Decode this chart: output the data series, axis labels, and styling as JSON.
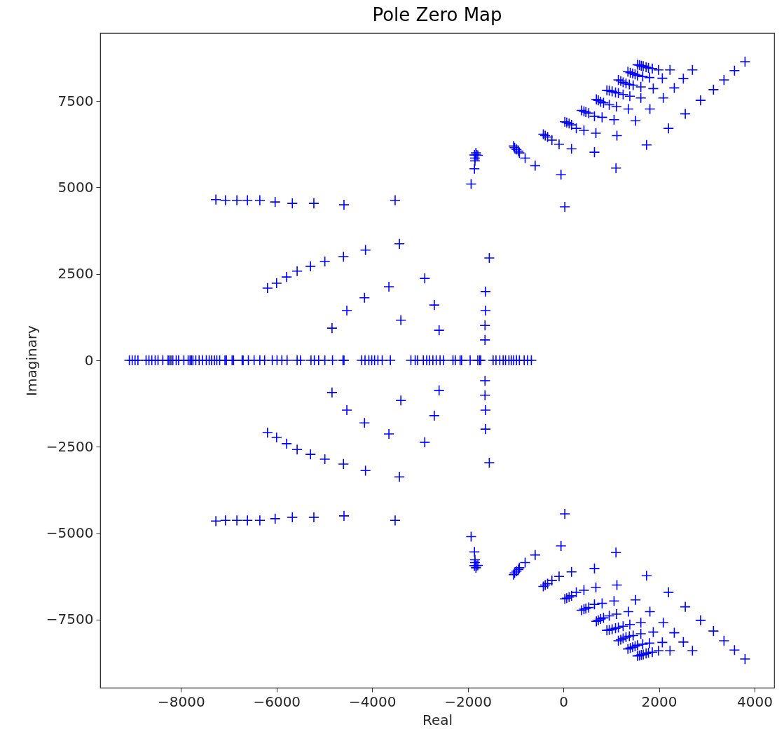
{
  "chart_data": {
    "type": "scatter",
    "title": "Pole Zero Map",
    "xlabel": "Real",
    "ylabel": "Imaginary",
    "xlim": [
      -9690,
      4410
    ],
    "ylim": [
      -9470,
      9470
    ],
    "xticks": [
      -8000,
      -6000,
      -4000,
      -2000,
      0,
      2000,
      4000
    ],
    "yticks": [
      -7500,
      -5000,
      -2500,
      0,
      2500,
      5000,
      7500
    ],
    "grid": false,
    "legend": false,
    "marker": "cross",
    "series": [
      {
        "color": "#0000ff",
        "x": [
          -7270,
          -7070,
          -6830,
          -6610,
          -6350,
          -6030,
          -5670,
          -5220,
          -4590,
          -3520,
          -6190,
          -6000,
          -5790,
          -5570,
          -5290,
          -4990,
          -4600,
          -4140,
          -3430,
          -4840,
          -4530,
          -4160,
          -3650,
          -2900,
          -2700,
          -2600,
          -3400,
          -1550,
          -1630,
          -1630,
          -1640,
          -1640,
          -1830,
          -1860,
          -1820,
          -1790,
          -1850,
          -1850,
          -1860,
          -1930,
          -1040,
          -1020,
          -980,
          -940,
          -920,
          -800,
          -590,
          -50,
          -420,
          -380,
          -330,
          -240,
          -90,
          170,
          650,
          1100,
          30,
          70,
          120,
          170,
          270,
          430,
          680,
          1120,
          380,
          430,
          470,
          530,
          650,
          810,
          1060,
          1510,
          690,
          730,
          780,
          840,
          960,
          1110,
          1360,
          1810,
          910,
          960,
          1020,
          1090,
          1150,
          1250,
          1390,
          1620,
          2090,
          1150,
          1200,
          1250,
          1310,
          1380,
          1460,
          1620,
          1880,
          2320,
          1350,
          1400,
          1450,
          1500,
          1550,
          1660,
          1800,
          2070,
          2510,
          1550,
          1590,
          1630,
          1670,
          1730,
          1780,
          1860,
          1990,
          2230,
          2700,
          1740,
          2200,
          2550,
          2870,
          3140,
          3360,
          3580,
          3800,
          30
        ],
        "values": [
          4650,
          4630,
          4630,
          4630,
          4630,
          4580,
          4540,
          4540,
          4500,
          4630,
          2090,
          2230,
          2410,
          2580,
          2720,
          2860,
          3000,
          3190,
          3370,
          930,
          1440,
          1810,
          2130,
          2370,
          1600,
          870,
          1160,
          2960,
          1990,
          1440,
          1010,
          590,
          6000,
          5940,
          5940,
          5930,
          5850,
          5770,
          5540,
          5100,
          6200,
          6150,
          6100,
          6050,
          6000,
          5850,
          5630,
          5370,
          6540,
          6500,
          6460,
          6370,
          6250,
          6120,
          6020,
          5560,
          6900,
          6880,
          6850,
          6810,
          6710,
          6650,
          6570,
          6500,
          7230,
          7200,
          7180,
          7150,
          7060,
          7030,
          6960,
          6930,
          7550,
          7520,
          7480,
          7450,
          7390,
          7340,
          7270,
          7270,
          7810,
          7800,
          7780,
          7750,
          7730,
          7690,
          7640,
          7590,
          7590,
          8110,
          8080,
          8040,
          8010,
          7980,
          7960,
          7910,
          7860,
          7880,
          8350,
          8320,
          8300,
          8270,
          8240,
          8210,
          8180,
          8160,
          8150,
          8550,
          8540,
          8520,
          8510,
          8480,
          8460,
          8440,
          8400,
          8400,
          8400,
          6230,
          6710,
          7130,
          7520,
          7830,
          8110,
          8380,
          8640,
          4440
        ]
      },
      {
        "color": "#0000ff",
        "x": [
          -7270,
          -7070,
          -6830,
          -6610,
          -6350,
          -6030,
          -5670,
          -5220,
          -4590,
          -3520,
          -6190,
          -6000,
          -5790,
          -5570,
          -5290,
          -4990,
          -4600,
          -4140,
          -3430,
          -4840,
          -4530,
          -4160,
          -3650,
          -2900,
          -2700,
          -2600,
          -3400,
          -1550,
          -1630,
          -1630,
          -1640,
          -1640,
          -1830,
          -1860,
          -1820,
          -1790,
          -1850,
          -1850,
          -1860,
          -1930,
          -1040,
          -1020,
          -980,
          -940,
          -920,
          -800,
          -590,
          -50,
          -420,
          -380,
          -330,
          -240,
          -90,
          170,
          650,
          1100,
          30,
          70,
          120,
          170,
          270,
          430,
          680,
          1120,
          380,
          430,
          470,
          530,
          650,
          810,
          1060,
          1510,
          690,
          730,
          780,
          840,
          960,
          1110,
          1360,
          1810,
          910,
          960,
          1020,
          1090,
          1150,
          1250,
          1390,
          1620,
          2090,
          1150,
          1200,
          1250,
          1310,
          1380,
          1460,
          1620,
          1880,
          2320,
          1350,
          1400,
          1450,
          1500,
          1550,
          1660,
          1800,
          2070,
          2510,
          1550,
          1590,
          1630,
          1670,
          1730,
          1780,
          1860,
          1990,
          2230,
          2700,
          1740,
          2200,
          2550,
          2870,
          3140,
          3360,
          3580,
          3800,
          30
        ],
        "values": [
          -4650,
          -4630,
          -4630,
          -4630,
          -4630,
          -4580,
          -4540,
          -4540,
          -4500,
          -4630,
          -2090,
          -2230,
          -2410,
          -2580,
          -2720,
          -2860,
          -3000,
          -3190,
          -3370,
          -930,
          -1440,
          -1810,
          -2130,
          -2370,
          -1600,
          -870,
          -1160,
          -2960,
          -1990,
          -1440,
          -1010,
          -590,
          -6000,
          -5940,
          -5940,
          -5930,
          -5850,
          -5770,
          -5540,
          -5100,
          -6200,
          -6150,
          -6100,
          -6050,
          -6000,
          -5850,
          -5630,
          -5370,
          -6540,
          -6500,
          -6460,
          -6370,
          -6250,
          -6120,
          -6020,
          -5560,
          -6900,
          -6880,
          -6850,
          -6810,
          -6710,
          -6650,
          -6570,
          -6500,
          -7230,
          -7200,
          -7180,
          -7150,
          -7060,
          -7030,
          -6960,
          -6930,
          -7550,
          -7520,
          -7480,
          -7450,
          -7390,
          -7340,
          -7270,
          -7270,
          -7810,
          -7800,
          -7780,
          -7750,
          -7730,
          -7690,
          -7640,
          -7590,
          -7590,
          -8110,
          -8080,
          -8040,
          -8010,
          -7980,
          -7960,
          -7910,
          -7860,
          -7880,
          -8350,
          -8320,
          -8300,
          -8270,
          -8240,
          -8210,
          -8180,
          -8160,
          -8150,
          -8550,
          -8540,
          -8520,
          -8510,
          -8480,
          -8460,
          -8440,
          -8400,
          -8400,
          -8400,
          -6230,
          -6710,
          -7130,
          -7520,
          -7830,
          -8110,
          -8380,
          -8640,
          -4440
        ]
      },
      {
        "color": "#0000ff",
        "x": [
          -9080,
          -9020,
          -8960,
          -8900,
          -8730,
          -8670,
          -8610,
          -8540,
          -8480,
          -8380,
          -8270,
          -8250,
          -8210,
          -8170,
          -8100,
          -8050,
          -7940,
          -7850,
          -7810,
          -7780,
          -7750,
          -7690,
          -7620,
          -7550,
          -7470,
          -7410,
          -7360,
          -7300,
          -7250,
          -7190,
          -7080,
          -7050,
          -6930,
          -6900,
          -6720,
          -6700,
          -6590,
          -6470,
          -6350,
          -6250,
          -6090,
          -5990,
          -5890,
          -5780,
          -5570,
          -5500,
          -5280,
          -5210,
          -5120,
          -4990,
          -4830,
          -4610,
          -4590,
          -4220,
          -4150,
          -4070,
          -4010,
          -3950,
          -3880,
          -3790,
          -3620,
          -3190,
          -3100,
          -3050,
          -2930,
          -2860,
          -2800,
          -2730,
          -2660,
          -2580,
          -2510,
          -2310,
          -2260,
          -2160,
          -2130,
          -1950,
          -1790,
          -1750,
          -1730,
          -1470,
          -1410,
          -1330,
          -1260,
          -1210,
          -1140,
          -1090,
          -1040,
          -980,
          -920,
          -820,
          -750,
          -670
        ],
        "values": [
          0,
          0,
          0,
          0,
          0,
          0,
          0,
          0,
          0,
          0,
          0,
          0,
          0,
          0,
          0,
          0,
          0,
          0,
          0,
          0,
          0,
          0,
          0,
          0,
          0,
          0,
          0,
          0,
          0,
          0,
          0,
          0,
          0,
          0,
          0,
          0,
          0,
          0,
          0,
          0,
          0,
          0,
          0,
          0,
          0,
          0,
          0,
          0,
          0,
          0,
          0,
          0,
          0,
          0,
          0,
          0,
          0,
          0,
          0,
          0,
          0,
          0,
          0,
          0,
          0,
          0,
          0,
          0,
          0,
          0,
          0,
          0,
          0,
          0,
          0,
          0,
          0,
          0,
          0,
          0,
          0,
          0,
          0,
          0,
          0,
          0,
          0,
          0,
          0,
          0,
          0,
          0
        ]
      }
    ]
  }
}
